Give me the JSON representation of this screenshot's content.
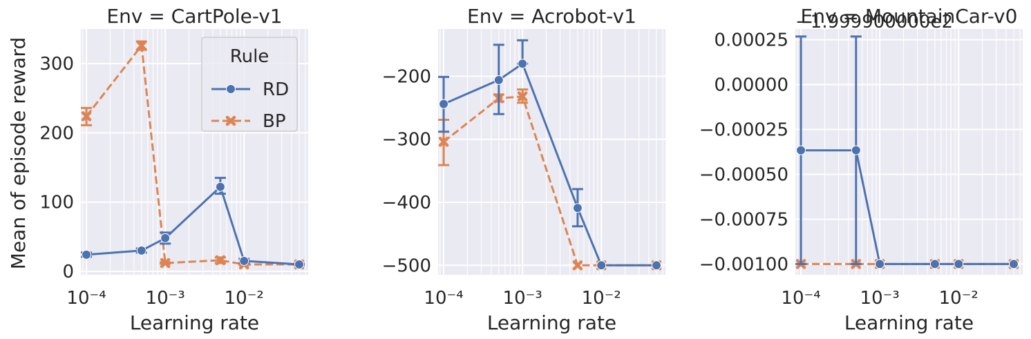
{
  "figure": {
    "ylabel": "Mean of episode reward",
    "xlabel": "Learning rate",
    "legend": {
      "title": "Rule",
      "placement": "upper-right of first panel"
    }
  },
  "colors": {
    "RD": "#4c72b0",
    "BP": "#dd8452",
    "panel_bg": "#eaeaf2",
    "grid": "#ffffff",
    "text": "#262626"
  },
  "chart_data": [
    {
      "type": "line",
      "title": "Env = CartPole-v1",
      "xlabel": "Learning rate",
      "ylabel": "Mean of episode reward",
      "xscale": "log",
      "xlim": [
        8.5e-05,
        0.065
      ],
      "ylim": [
        -5,
        350
      ],
      "xticks": [
        0.0001,
        0.001,
        0.01
      ],
      "xtick_labels": [
        "10⁻⁴",
        "10⁻³",
        "10⁻²"
      ],
      "yticks": [
        0,
        100,
        200,
        300
      ],
      "ytick_labels": [
        "0",
        "100",
        "200",
        "300"
      ],
      "offset_text": "",
      "grid": true,
      "legend": {
        "title": "Rule",
        "entries": [
          "RD",
          "BP"
        ],
        "placement": "upper right"
      },
      "series": [
        {
          "name": "RD",
          "marker": "circle",
          "linestyle": "solid",
          "x": [
            0.0001,
            0.0005,
            0.001,
            0.005,
            0.01,
            0.05
          ],
          "y": [
            24,
            30,
            48,
            122,
            15,
            10
          ],
          "err_low": [
            21,
            27,
            40,
            112,
            12,
            9
          ],
          "err_high": [
            27,
            33,
            56,
            135,
            18,
            11
          ]
        },
        {
          "name": "BP",
          "marker": "x",
          "linestyle": "dashed",
          "x": [
            0.0001,
            0.0005,
            0.001,
            0.005,
            0.01,
            0.05
          ],
          "y": [
            224,
            326,
            12,
            16,
            10,
            10
          ],
          "err_low": [
            211,
            320,
            11,
            12,
            9,
            9
          ],
          "err_high": [
            236,
            332,
            13,
            20,
            11,
            11
          ]
        }
      ]
    },
    {
      "type": "line",
      "title": "Env = Acrobot-v1",
      "xlabel": "Learning rate",
      "ylabel": "",
      "xscale": "log",
      "xlim": [
        8.5e-05,
        0.065
      ],
      "ylim": [
        -515,
        -125
      ],
      "xticks": [
        0.0001,
        0.001,
        0.01
      ],
      "xtick_labels": [
        "10⁻⁴",
        "10⁻³",
        "10⁻²"
      ],
      "yticks": [
        -500,
        -400,
        -300,
        -200
      ],
      "ytick_labels": [
        "−500",
        "−400",
        "−300",
        "−200"
      ],
      "offset_text": "",
      "grid": true,
      "series": [
        {
          "name": "RD",
          "marker": "circle",
          "linestyle": "solid",
          "x": [
            0.0001,
            0.0005,
            0.001,
            0.005,
            0.01,
            0.05
          ],
          "y": [
            -244,
            -206,
            -180,
            -409,
            -500,
            -500
          ],
          "err_low": [
            -288,
            -260,
            -180,
            -438,
            -500,
            -500
          ],
          "err_high": [
            -201,
            -150,
            -143,
            -379,
            -500,
            -500
          ]
        },
        {
          "name": "BP",
          "marker": "x",
          "linestyle": "dashed",
          "x": [
            0.0001,
            0.0005,
            0.001,
            0.005,
            0.01,
            0.05
          ],
          "y": [
            -304,
            -235,
            -232,
            -500,
            -500,
            -500
          ],
          "err_low": [
            -341,
            -240,
            -242,
            -500,
            -500,
            -500
          ],
          "err_high": [
            -269,
            -229,
            -221,
            -500,
            -500,
            -500
          ]
        }
      ]
    },
    {
      "type": "line",
      "title": "Env = MountainCar-v0",
      "xlabel": "Learning rate",
      "ylabel": "",
      "xscale": "log",
      "xlim": [
        8.5e-05,
        0.065
      ],
      "ylim": [
        -0.00106,
        0.00031
      ],
      "xticks": [
        0.0001,
        0.001,
        0.01
      ],
      "xtick_labels": [
        "10⁻⁴",
        "10⁻³",
        "10⁻²"
      ],
      "yticks": [
        -0.001,
        -0.00075,
        -0.0005,
        -0.00025,
        0,
        0.00025
      ],
      "ytick_labels": [
        "−0.00100",
        "−0.00075",
        "−0.00050",
        "−0.00025",
        "0.00000",
        "0.00025"
      ],
      "offset_text": "−1.999900000e2",
      "grid": true,
      "series": [
        {
          "name": "RD",
          "marker": "circle",
          "linestyle": "solid",
          "x": [
            0.0001,
            0.0005,
            0.001,
            0.005,
            0.01,
            0.05
          ],
          "y": [
            -0.000366,
            -0.000366,
            -0.001,
            -0.001,
            -0.001,
            -0.001
          ],
          "err_low": [
            -0.001,
            -0.001,
            -0.001,
            -0.001,
            -0.001,
            -0.001
          ],
          "err_high": [
            0.000268,
            0.000268,
            -0.001,
            -0.001,
            -0.001,
            -0.001
          ]
        },
        {
          "name": "BP",
          "marker": "x",
          "linestyle": "dashed",
          "x": [
            0.0001,
            0.0005,
            0.001,
            0.005,
            0.01,
            0.05
          ],
          "y": [
            -0.001,
            -0.001,
            -0.001,
            -0.001,
            -0.001,
            -0.001
          ],
          "err_low": [
            -0.001,
            -0.001,
            -0.001,
            -0.001,
            -0.001,
            -0.001
          ],
          "err_high": [
            -0.001,
            -0.001,
            -0.001,
            -0.001,
            -0.001,
            -0.001
          ]
        }
      ]
    }
  ]
}
